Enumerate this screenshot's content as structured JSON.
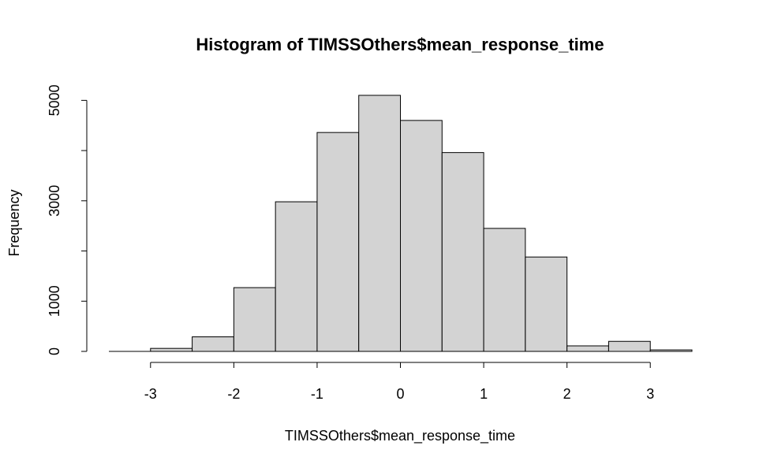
{
  "chart_data": {
    "type": "bar",
    "subtype": "histogram",
    "title": "Histogram of TIMSSOthers$mean_response_time",
    "xlabel": "TIMSSOthers$mean_response_time",
    "ylabel": "Frequency",
    "bins": [
      {
        "from": -3.5,
        "to": -3.0,
        "count": 0
      },
      {
        "from": -3.0,
        "to": -2.5,
        "count": 60
      },
      {
        "from": -2.5,
        "to": -2.0,
        "count": 290
      },
      {
        "from": -2.0,
        "to": -1.5,
        "count": 1270
      },
      {
        "from": -1.5,
        "to": -1.0,
        "count": 2980
      },
      {
        "from": -1.0,
        "to": -0.5,
        "count": 4360
      },
      {
        "from": -0.5,
        "to": 0.0,
        "count": 5100
      },
      {
        "from": 0.0,
        "to": 0.5,
        "count": 4600
      },
      {
        "from": 0.5,
        "to": 1.0,
        "count": 3960
      },
      {
        "from": 1.0,
        "to": 1.5,
        "count": 2450
      },
      {
        "from": 1.5,
        "to": 2.0,
        "count": 1880
      },
      {
        "from": 2.0,
        "to": 2.5,
        "count": 110
      },
      {
        "from": 2.5,
        "to": 3.0,
        "count": 200
      },
      {
        "from": 3.0,
        "to": 3.5,
        "count": 30
      }
    ],
    "xlim": [
      -3.5,
      3.5
    ],
    "ylim": [
      0,
      5100
    ],
    "x_ticks": [
      -3,
      -2,
      -1,
      0,
      1,
      2,
      3
    ],
    "x_tick_labels": [
      "-3",
      "-2",
      "-1",
      "0",
      "1",
      "2",
      "3"
    ],
    "y_ticks": [
      0,
      1000,
      2000,
      3000,
      4000,
      5000
    ],
    "y_tick_labels": [
      "0",
      "1000",
      "3000",
      "5000"
    ],
    "y_labeled_ticks": [
      0,
      1000,
      3000,
      5000
    ],
    "bar_fill": "#d3d3d3",
    "bar_stroke": "#000000",
    "grid": false,
    "legend": "none"
  }
}
